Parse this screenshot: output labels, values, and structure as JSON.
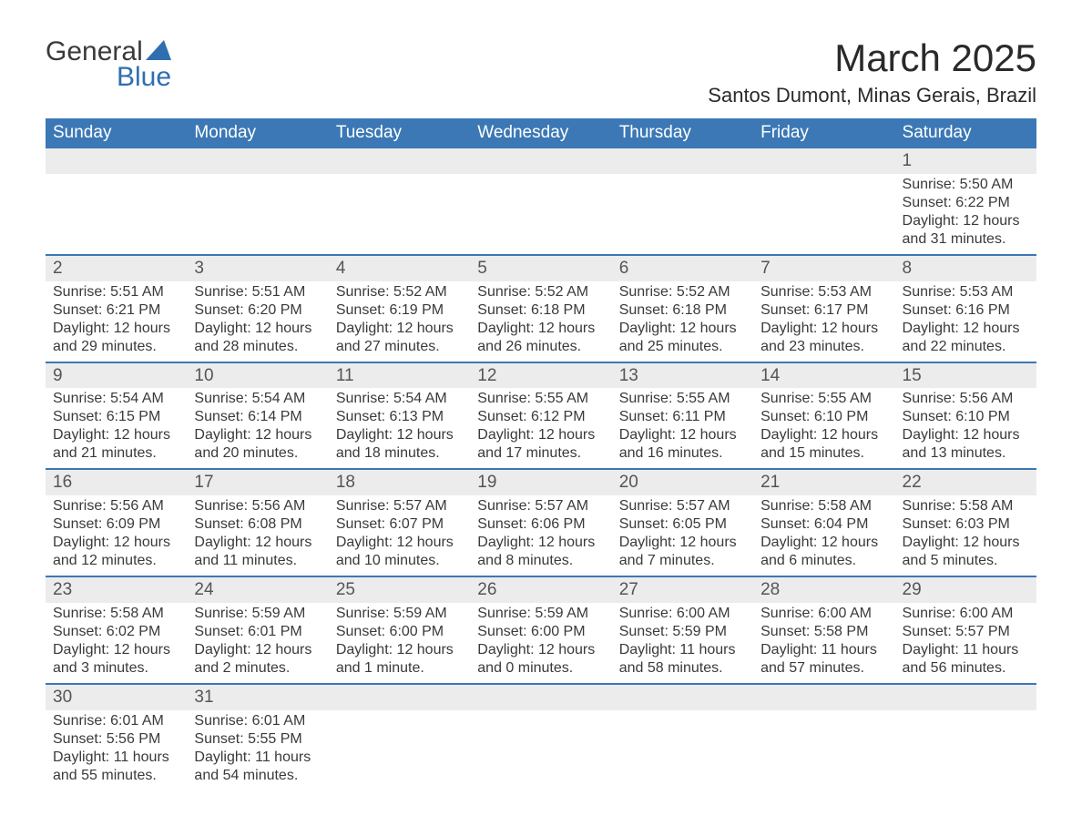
{
  "logo": {
    "text1": "General",
    "text2": "Blue",
    "tri_color": "#2f6fb0"
  },
  "header": {
    "title": "March 2025",
    "subtitle": "Santos Dumont, Minas Gerais, Brazil",
    "title_fontsize": 42,
    "subtitle_fontsize": 22,
    "title_color": "#2a2a2a"
  },
  "calendar": {
    "type": "table",
    "header_bg": "#3b78b5",
    "header_text_color": "#ffffff",
    "daynum_bg": "#ececec",
    "row_separator_color": "#3b78b5",
    "body_text_color": "#3a3a3a",
    "body_fontsize": 16,
    "header_fontsize": 19,
    "columns": [
      "Sunday",
      "Monday",
      "Tuesday",
      "Wednesday",
      "Thursday",
      "Friday",
      "Saturday"
    ],
    "weeks": [
      [
        null,
        null,
        null,
        null,
        null,
        null,
        {
          "n": "1",
          "sr": "Sunrise: 5:50 AM",
          "ss": "Sunset: 6:22 PM",
          "d1": "Daylight: 12 hours",
          "d2": "and 31 minutes."
        }
      ],
      [
        {
          "n": "2",
          "sr": "Sunrise: 5:51 AM",
          "ss": "Sunset: 6:21 PM",
          "d1": "Daylight: 12 hours",
          "d2": "and 29 minutes."
        },
        {
          "n": "3",
          "sr": "Sunrise: 5:51 AM",
          "ss": "Sunset: 6:20 PM",
          "d1": "Daylight: 12 hours",
          "d2": "and 28 minutes."
        },
        {
          "n": "4",
          "sr": "Sunrise: 5:52 AM",
          "ss": "Sunset: 6:19 PM",
          "d1": "Daylight: 12 hours",
          "d2": "and 27 minutes."
        },
        {
          "n": "5",
          "sr": "Sunrise: 5:52 AM",
          "ss": "Sunset: 6:18 PM",
          "d1": "Daylight: 12 hours",
          "d2": "and 26 minutes."
        },
        {
          "n": "6",
          "sr": "Sunrise: 5:52 AM",
          "ss": "Sunset: 6:18 PM",
          "d1": "Daylight: 12 hours",
          "d2": "and 25 minutes."
        },
        {
          "n": "7",
          "sr": "Sunrise: 5:53 AM",
          "ss": "Sunset: 6:17 PM",
          "d1": "Daylight: 12 hours",
          "d2": "and 23 minutes."
        },
        {
          "n": "8",
          "sr": "Sunrise: 5:53 AM",
          "ss": "Sunset: 6:16 PM",
          "d1": "Daylight: 12 hours",
          "d2": "and 22 minutes."
        }
      ],
      [
        {
          "n": "9",
          "sr": "Sunrise: 5:54 AM",
          "ss": "Sunset: 6:15 PM",
          "d1": "Daylight: 12 hours",
          "d2": "and 21 minutes."
        },
        {
          "n": "10",
          "sr": "Sunrise: 5:54 AM",
          "ss": "Sunset: 6:14 PM",
          "d1": "Daylight: 12 hours",
          "d2": "and 20 minutes."
        },
        {
          "n": "11",
          "sr": "Sunrise: 5:54 AM",
          "ss": "Sunset: 6:13 PM",
          "d1": "Daylight: 12 hours",
          "d2": "and 18 minutes."
        },
        {
          "n": "12",
          "sr": "Sunrise: 5:55 AM",
          "ss": "Sunset: 6:12 PM",
          "d1": "Daylight: 12 hours",
          "d2": "and 17 minutes."
        },
        {
          "n": "13",
          "sr": "Sunrise: 5:55 AM",
          "ss": "Sunset: 6:11 PM",
          "d1": "Daylight: 12 hours",
          "d2": "and 16 minutes."
        },
        {
          "n": "14",
          "sr": "Sunrise: 5:55 AM",
          "ss": "Sunset: 6:10 PM",
          "d1": "Daylight: 12 hours",
          "d2": "and 15 minutes."
        },
        {
          "n": "15",
          "sr": "Sunrise: 5:56 AM",
          "ss": "Sunset: 6:10 PM",
          "d1": "Daylight: 12 hours",
          "d2": "and 13 minutes."
        }
      ],
      [
        {
          "n": "16",
          "sr": "Sunrise: 5:56 AM",
          "ss": "Sunset: 6:09 PM",
          "d1": "Daylight: 12 hours",
          "d2": "and 12 minutes."
        },
        {
          "n": "17",
          "sr": "Sunrise: 5:56 AM",
          "ss": "Sunset: 6:08 PM",
          "d1": "Daylight: 12 hours",
          "d2": "and 11 minutes."
        },
        {
          "n": "18",
          "sr": "Sunrise: 5:57 AM",
          "ss": "Sunset: 6:07 PM",
          "d1": "Daylight: 12 hours",
          "d2": "and 10 minutes."
        },
        {
          "n": "19",
          "sr": "Sunrise: 5:57 AM",
          "ss": "Sunset: 6:06 PM",
          "d1": "Daylight: 12 hours",
          "d2": "and 8 minutes."
        },
        {
          "n": "20",
          "sr": "Sunrise: 5:57 AM",
          "ss": "Sunset: 6:05 PM",
          "d1": "Daylight: 12 hours",
          "d2": "and 7 minutes."
        },
        {
          "n": "21",
          "sr": "Sunrise: 5:58 AM",
          "ss": "Sunset: 6:04 PM",
          "d1": "Daylight: 12 hours",
          "d2": "and 6 minutes."
        },
        {
          "n": "22",
          "sr": "Sunrise: 5:58 AM",
          "ss": "Sunset: 6:03 PM",
          "d1": "Daylight: 12 hours",
          "d2": "and 5 minutes."
        }
      ],
      [
        {
          "n": "23",
          "sr": "Sunrise: 5:58 AM",
          "ss": "Sunset: 6:02 PM",
          "d1": "Daylight: 12 hours",
          "d2": "and 3 minutes."
        },
        {
          "n": "24",
          "sr": "Sunrise: 5:59 AM",
          "ss": "Sunset: 6:01 PM",
          "d1": "Daylight: 12 hours",
          "d2": "and 2 minutes."
        },
        {
          "n": "25",
          "sr": "Sunrise: 5:59 AM",
          "ss": "Sunset: 6:00 PM",
          "d1": "Daylight: 12 hours",
          "d2": "and 1 minute."
        },
        {
          "n": "26",
          "sr": "Sunrise: 5:59 AM",
          "ss": "Sunset: 6:00 PM",
          "d1": "Daylight: 12 hours",
          "d2": "and 0 minutes."
        },
        {
          "n": "27",
          "sr": "Sunrise: 6:00 AM",
          "ss": "Sunset: 5:59 PM",
          "d1": "Daylight: 11 hours",
          "d2": "and 58 minutes."
        },
        {
          "n": "28",
          "sr": "Sunrise: 6:00 AM",
          "ss": "Sunset: 5:58 PM",
          "d1": "Daylight: 11 hours",
          "d2": "and 57 minutes."
        },
        {
          "n": "29",
          "sr": "Sunrise: 6:00 AM",
          "ss": "Sunset: 5:57 PM",
          "d1": "Daylight: 11 hours",
          "d2": "and 56 minutes."
        }
      ],
      [
        {
          "n": "30",
          "sr": "Sunrise: 6:01 AM",
          "ss": "Sunset: 5:56 PM",
          "d1": "Daylight: 11 hours",
          "d2": "and 55 minutes."
        },
        {
          "n": "31",
          "sr": "Sunrise: 6:01 AM",
          "ss": "Sunset: 5:55 PM",
          "d1": "Daylight: 11 hours",
          "d2": "and 54 minutes."
        },
        null,
        null,
        null,
        null,
        null
      ]
    ]
  }
}
